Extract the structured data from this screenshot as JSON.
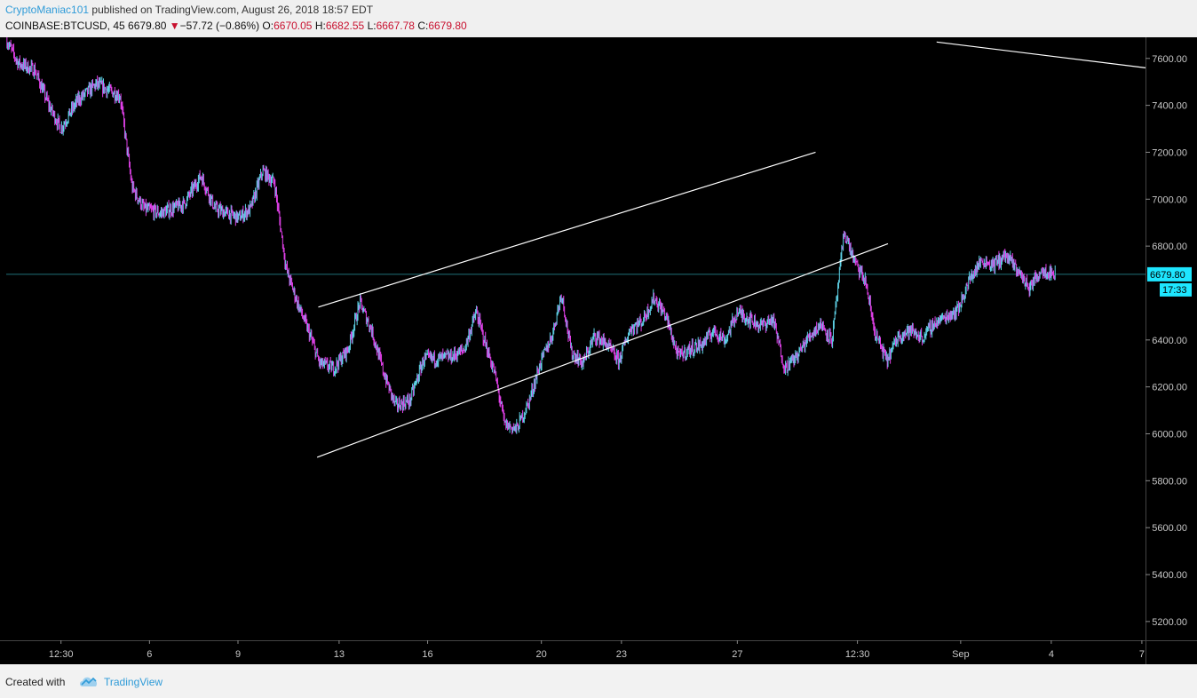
{
  "header": {
    "author": "CryptoManiac101",
    "published_text": " published on TradingView.com, August 26, 2018 18:57 EDT",
    "symbol_text": "COINBASE:BTCUSD, 45",
    "last": "6679.80",
    "change": "−57.72 (−0.86%)",
    "down_arrow": "▼",
    "o_label": "O:",
    "o_value": "6670.05",
    "h_label": "H:",
    "h_value": "6682.55",
    "l_label": "L:",
    "l_value": "6667.78",
    "c_label": "C:",
    "c_value": "6679.80"
  },
  "footer": {
    "created_with": "Created with",
    "brand": "TradingView"
  },
  "colors": {
    "background": "#000000",
    "up_candle": "#5fd3e8",
    "down_candle": "#e040e8",
    "trendline": "#ffffff",
    "price_line": "#1f6f78",
    "price_tag": "#1ee6ff",
    "header_red": "#c8102e",
    "brand_blue": "#2f9bd8"
  },
  "chart_data": {
    "type": "candlestick",
    "symbol": "COINBASE:BTCUSD",
    "interval": "45",
    "ylim": [
      5120,
      7690
    ],
    "y_ticks": [
      "7600.00",
      "7400.00",
      "7200.00",
      "7000.00",
      "6800.00",
      "6400.00",
      "6200.00",
      "6000.00",
      "5800.00",
      "5600.00",
      "5400.00",
      "5200.00"
    ],
    "x_ticks": [
      "12:30",
      "6",
      "9",
      "13",
      "16",
      "20",
      "23",
      "27",
      "12:30",
      "Sep",
      "4",
      "7"
    ],
    "last_price": 6679.8,
    "last_price_label": "6679.80",
    "countdown": "17:33",
    "price_path": [
      [
        0,
        7680
      ],
      [
        0.5,
        7580
      ],
      [
        1.2,
        7550
      ],
      [
        1.8,
        7400
      ],
      [
        2.3,
        7300
      ],
      [
        3.0,
        7420
      ],
      [
        3.8,
        7490
      ],
      [
        4.8,
        7440
      ],
      [
        5.3,
        7050
      ],
      [
        5.8,
        6960
      ],
      [
        6.5,
        6940
      ],
      [
        7.5,
        6980
      ],
      [
        8.2,
        7100
      ],
      [
        8.8,
        6960
      ],
      [
        9.8,
        6920
      ],
      [
        10.3,
        6960
      ],
      [
        10.8,
        7120
      ],
      [
        11.3,
        7070
      ],
      [
        11.8,
        6700
      ],
      [
        12.3,
        6550
      ],
      [
        12.8,
        6420
      ],
      [
        13.2,
        6300
      ],
      [
        13.8,
        6280
      ],
      [
        14.4,
        6360
      ],
      [
        14.9,
        6560
      ],
      [
        15.4,
        6440
      ],
      [
        15.9,
        6260
      ],
      [
        16.4,
        6120
      ],
      [
        17.0,
        6140
      ],
      [
        17.6,
        6320
      ],
      [
        18.2,
        6320
      ],
      [
        18.8,
        6330
      ],
      [
        19.3,
        6360
      ],
      [
        19.8,
        6520
      ],
      [
        20.2,
        6380
      ],
      [
        20.6,
        6250
      ],
      [
        21.0,
        6040
      ],
      [
        21.5,
        6020
      ],
      [
        22.0,
        6130
      ],
      [
        22.5,
        6300
      ],
      [
        23.0,
        6420
      ],
      [
        23.4,
        6600
      ],
      [
        23.8,
        6350
      ],
      [
        24.3,
        6300
      ],
      [
        24.8,
        6420
      ],
      [
        25.3,
        6380
      ],
      [
        25.8,
        6310
      ],
      [
        26.3,
        6450
      ],
      [
        26.8,
        6480
      ],
      [
        27.3,
        6580
      ],
      [
        27.8,
        6500
      ],
      [
        28.3,
        6330
      ],
      [
        28.8,
        6360
      ],
      [
        29.3,
        6380
      ],
      [
        29.8,
        6440
      ],
      [
        30.3,
        6400
      ],
      [
        30.8,
        6520
      ],
      [
        31.3,
        6490
      ],
      [
        31.8,
        6460
      ],
      [
        32.3,
        6490
      ],
      [
        32.8,
        6280
      ],
      [
        33.3,
        6330
      ],
      [
        33.8,
        6410
      ],
      [
        34.3,
        6470
      ],
      [
        34.8,
        6400
      ],
      [
        35.3,
        6860
      ],
      [
        35.8,
        6720
      ],
      [
        36.2,
        6650
      ],
      [
        36.6,
        6430
      ],
      [
        37.1,
        6310
      ],
      [
        37.6,
        6420
      ],
      [
        38.1,
        6440
      ],
      [
        38.6,
        6410
      ],
      [
        39.1,
        6470
      ],
      [
        39.6,
        6500
      ],
      [
        40.1,
        6530
      ],
      [
        40.6,
        6660
      ],
      [
        41.1,
        6740
      ],
      [
        41.6,
        6720
      ],
      [
        42.1,
        6760
      ],
      [
        42.6,
        6700
      ],
      [
        43.1,
        6620
      ],
      [
        43.6,
        6700
      ],
      [
        44.2,
        6680
      ]
    ],
    "trendlines": [
      {
        "name": "channel-upper",
        "from": [
          13.15,
          6540
        ],
        "to": [
          34.1,
          7200
        ]
      },
      {
        "name": "channel-lower",
        "from": [
          13.1,
          5900
        ],
        "to": [
          37.15,
          6810
        ]
      },
      {
        "name": "long-term-resistance",
        "from": [
          39.2,
          7670
        ],
        "to": [
          48.0,
          7560
        ]
      }
    ]
  }
}
